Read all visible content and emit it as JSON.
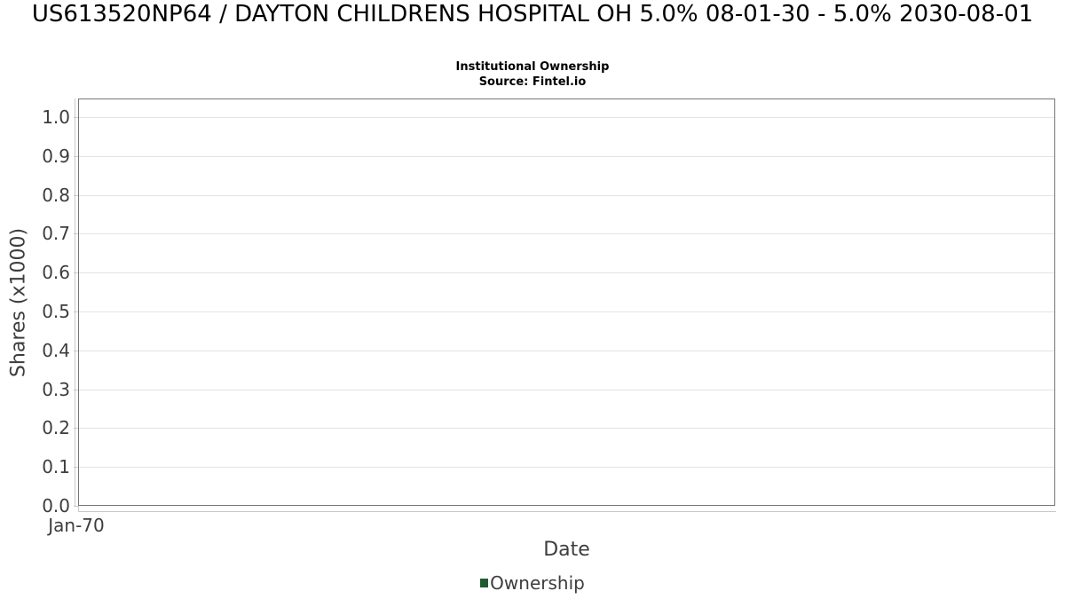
{
  "header": {
    "title": "US613520NP64 / DAYTON CHILDRENS HOSPITAL OH 5.0% 08-01-30 - 5.0% 2030-08-01",
    "subtitle": "Institutional Ownership",
    "source": "Source: Fintel.io"
  },
  "chart_data": {
    "type": "line",
    "title": "US613520NP64 / DAYTON CHILDRENS HOSPITAL OH 5.0% 08-01-30 - 5.0% 2030-08-01",
    "subtitle": "Institutional Ownership",
    "source": "Source: Fintel.io",
    "xlabel": "Date",
    "ylabel": "Shares (x1000)",
    "x_tick_labels": [
      "Jan-70"
    ],
    "y_tick_labels": [
      "0.0",
      "0.1",
      "0.2",
      "0.3",
      "0.4",
      "0.5",
      "0.6",
      "0.7",
      "0.8",
      "0.9",
      "1.0"
    ],
    "ylim": [
      0,
      1.048
    ],
    "grid": "horizontal",
    "legend_position": "bottom",
    "series": [
      {
        "name": "Ownership",
        "color": "#1e5b31",
        "x": [],
        "y": []
      }
    ]
  },
  "legend": {
    "items": [
      {
        "label": "Ownership",
        "color": "#1e5b31"
      }
    ]
  }
}
